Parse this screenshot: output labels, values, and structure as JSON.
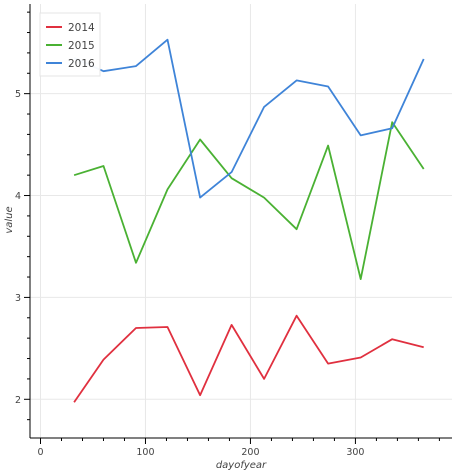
{
  "chart_data": {
    "type": "line",
    "xlabel": "dayofyear",
    "ylabel": "value",
    "xlim": [
      -10,
      392
    ],
    "ylim": [
      1.62,
      5.88
    ],
    "x_ticks": [
      0,
      100,
      200,
      300
    ],
    "y_ticks": [
      2,
      3,
      4,
      5
    ],
    "grid": true,
    "legend_position": "top-left",
    "series": [
      {
        "name": "2014",
        "color": "#e0303f",
        "x": [
          32,
          60,
          91,
          121,
          152,
          182,
          213,
          244,
          274,
          305,
          335,
          365
        ],
        "y": [
          1.97,
          2.39,
          2.7,
          2.71,
          2.04,
          2.73,
          2.2,
          2.82,
          2.35,
          2.41,
          2.59,
          2.51
        ]
      },
      {
        "name": "2015",
        "color": "#4ab133",
        "x": [
          32,
          60,
          91,
          121,
          152,
          182,
          213,
          244,
          274,
          305,
          335,
          365
        ],
        "y": [
          4.2,
          4.29,
          3.34,
          4.06,
          4.55,
          4.17,
          3.98,
          3.67,
          4.49,
          3.18,
          4.72,
          4.26
        ]
      },
      {
        "name": "2016",
        "color": "#3f84d8",
        "x": [
          32,
          60,
          91,
          121,
          152,
          182,
          213,
          244,
          274,
          305,
          335,
          365
        ],
        "y": [
          5.35,
          5.22,
          5.27,
          5.53,
          3.98,
          4.23,
          4.87,
          5.13,
          5.07,
          4.59,
          4.66,
          5.34
        ]
      }
    ]
  }
}
